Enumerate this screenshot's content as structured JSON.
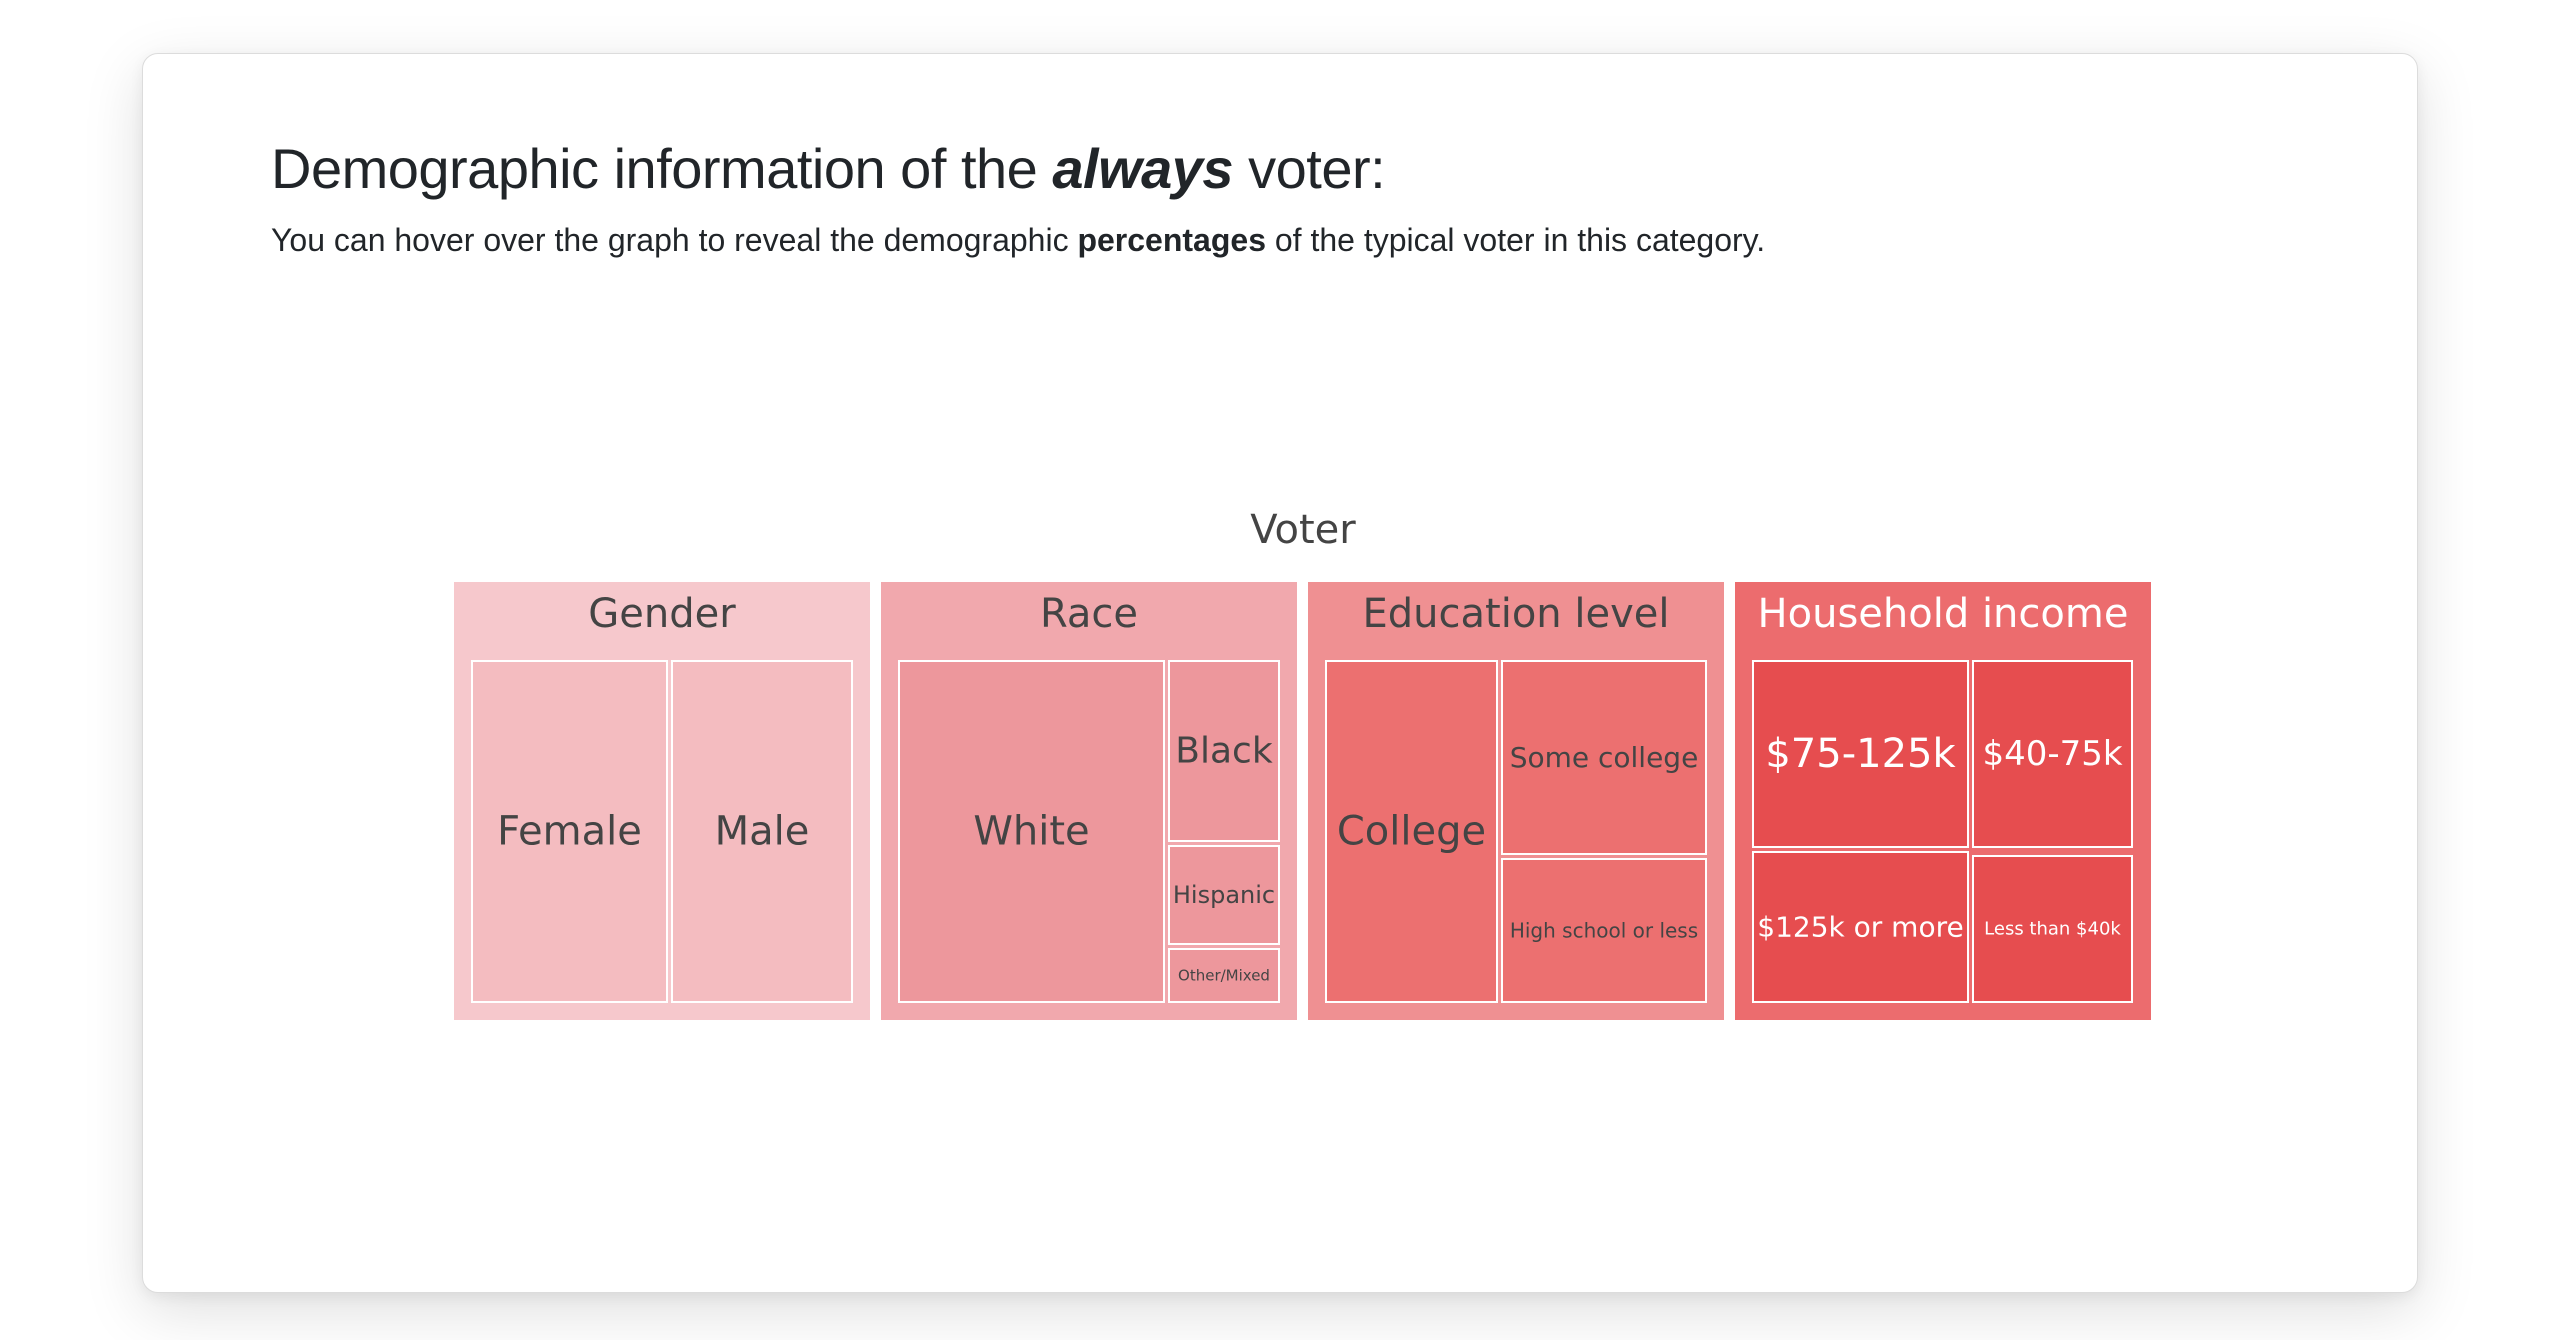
{
  "header": {
    "title_before": "Demographic information of the ",
    "title_emphasis": "always",
    "title_after": " voter:",
    "subtitle_before": "You can hover over the graph to reveal the demographic ",
    "subtitle_bold": "percentages",
    "subtitle_after": " of the typical voter in this category."
  },
  "chart_data": {
    "type": "treemap",
    "root": "Voter",
    "colors": {
      "Gender": "#f6c8cc",
      "Race": "#f1a8ad",
      "Education level": "#ef9092",
      "Household income": "#ec6c6e"
    },
    "leaf_colors": {
      "Female": "#f4bcc0",
      "Male": "#f4bcc0",
      "White": "#ed979c",
      "Black": "#ed979c",
      "Hispanic": "#ed979c",
      "Other/Mixed": "#ed979c",
      "College": "#ec7070",
      "Some college": "#ec7070",
      "High school or less": "#ec7070",
      "$75-125k": "#e64d4f",
      "$40-75k": "#e64d4f",
      "$125k or more": "#e64d4f",
      "Less than $40k": "#e64d4f"
    },
    "categories": [
      {
        "name": "Gender",
        "children": [
          {
            "name": "Female"
          },
          {
            "name": "Male"
          }
        ]
      },
      {
        "name": "Race",
        "children": [
          {
            "name": "White"
          },
          {
            "name": "Black"
          },
          {
            "name": "Hispanic"
          },
          {
            "name": "Other/Mixed"
          }
        ]
      },
      {
        "name": "Education level",
        "children": [
          {
            "name": "College"
          },
          {
            "name": "Some college"
          },
          {
            "name": "High school or less"
          }
        ]
      },
      {
        "name": "Household income",
        "children": [
          {
            "name": "$75-125k"
          },
          {
            "name": "$40-75k"
          },
          {
            "name": "$125k or more"
          },
          {
            "name": "Less than $40k"
          }
        ]
      }
    ]
  }
}
